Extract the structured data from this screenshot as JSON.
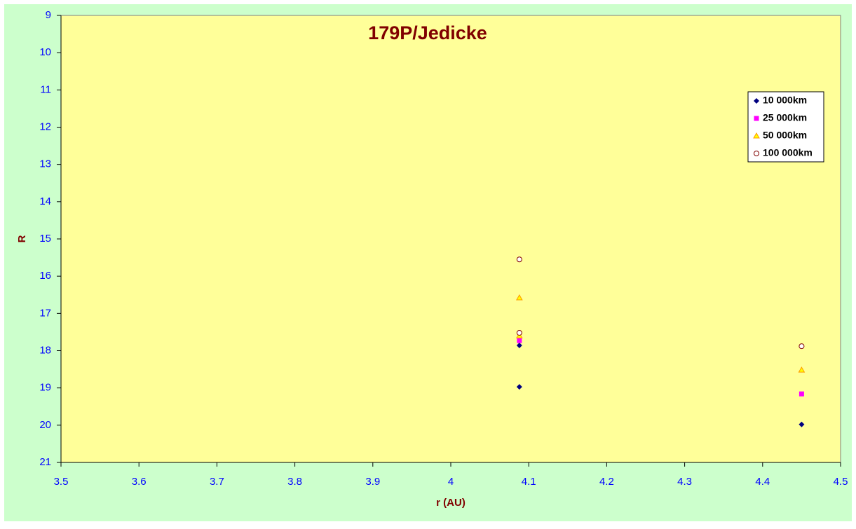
{
  "chart_data": {
    "type": "scatter",
    "title": "179P/Jedicke",
    "x_label": "r (AU)",
    "y_label": "R",
    "xlim": [
      3.5,
      4.5
    ],
    "xticks": [
      3.5,
      3.6,
      3.7,
      3.8,
      3.9,
      4,
      4.1,
      4.2,
      4.3,
      4.4,
      4.5
    ],
    "ylim": [
      9,
      21
    ],
    "yticks": [
      9,
      10,
      11,
      12,
      13,
      14,
      15,
      16,
      17,
      18,
      19,
      20,
      21
    ],
    "y_inverted": true,
    "grid": false,
    "legend": "upper right",
    "series": [
      {
        "name": "10 000km",
        "color": "#000080",
        "marker": "diamond",
        "x": [
          4.088,
          4.088,
          4.45
        ],
        "values": [
          17.86,
          18.97,
          19.98
        ]
      },
      {
        "name": "25 000km",
        "color": "#ff00ff",
        "marker": "square",
        "x": [
          4.088,
          4.45
        ],
        "values": [
          17.73,
          19.16
        ]
      },
      {
        "name": "50 000km",
        "color": "#ff9900",
        "marker": "triangle",
        "x": [
          4.088,
          4.088,
          4.45
        ],
        "values": [
          16.58,
          17.6,
          18.52
        ]
      },
      {
        "name": "100 000km",
        "color": "#800000",
        "marker": "circle",
        "x": [
          4.088,
          4.088,
          4.45
        ],
        "values": [
          15.55,
          17.52,
          17.88
        ]
      }
    ]
  }
}
